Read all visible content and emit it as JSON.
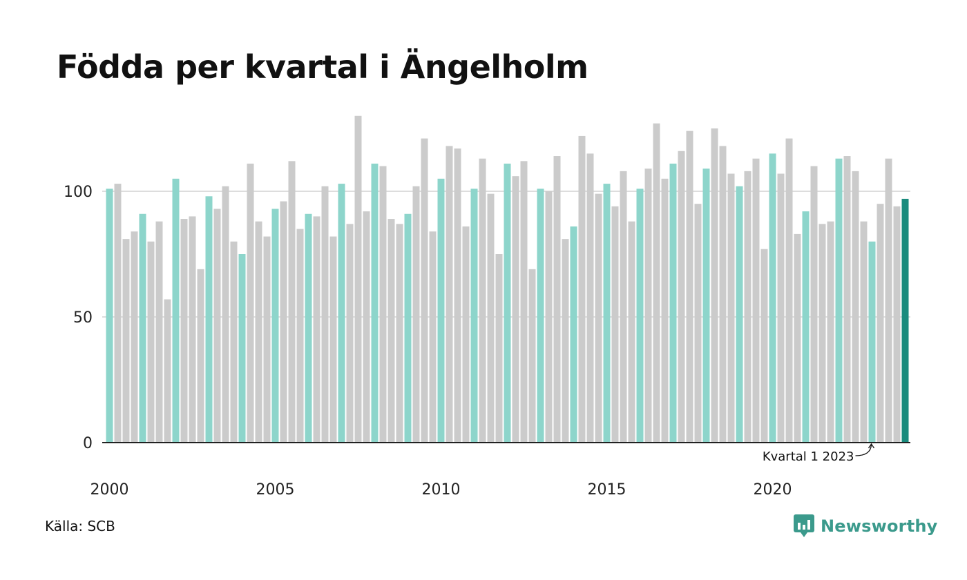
{
  "title": "Födda per kvartal i Ängelholm",
  "source": "Källa: SCB",
  "brand": {
    "name": "Newsworthy",
    "icon": "newsworthy-logo-icon"
  },
  "colors": {
    "q1": "#8dd5cb",
    "other": "#cbcbcb",
    "highlight": "#1a8b7d",
    "grid": "#dddddd",
    "axis": "#222222",
    "brand": "#3b9a8c"
  },
  "chart_data": {
    "type": "bar",
    "start_year": 2000,
    "start_quarter": 1,
    "values": [
      101,
      103,
      81,
      84,
      91,
      80,
      88,
      57,
      105,
      89,
      90,
      69,
      98,
      93,
      102,
      80,
      75,
      111,
      88,
      82,
      93,
      96,
      112,
      85,
      91,
      90,
      102,
      82,
      103,
      87,
      130,
      92,
      111,
      110,
      89,
      87,
      91,
      102,
      121,
      84,
      105,
      118,
      117,
      86,
      101,
      113,
      99,
      75,
      111,
      106,
      112,
      69,
      101,
      100,
      114,
      81,
      86,
      122,
      115,
      99,
      103,
      94,
      108,
      88,
      101,
      109,
      127,
      105,
      111,
      116,
      124,
      95,
      109,
      125,
      118,
      107,
      102,
      108,
      113,
      77,
      115,
      107,
      121,
      83,
      92,
      110,
      87,
      88,
      113,
      114,
      108,
      88,
      80,
      95,
      113,
      94,
      97
    ],
    "yticks": [
      0,
      50,
      100
    ],
    "ylim": [
      0,
      130
    ],
    "xticks": [
      "2000",
      "2005",
      "2010",
      "2015",
      "2020"
    ],
    "grid": true,
    "annotation": "Kvartal 1 2023"
  }
}
